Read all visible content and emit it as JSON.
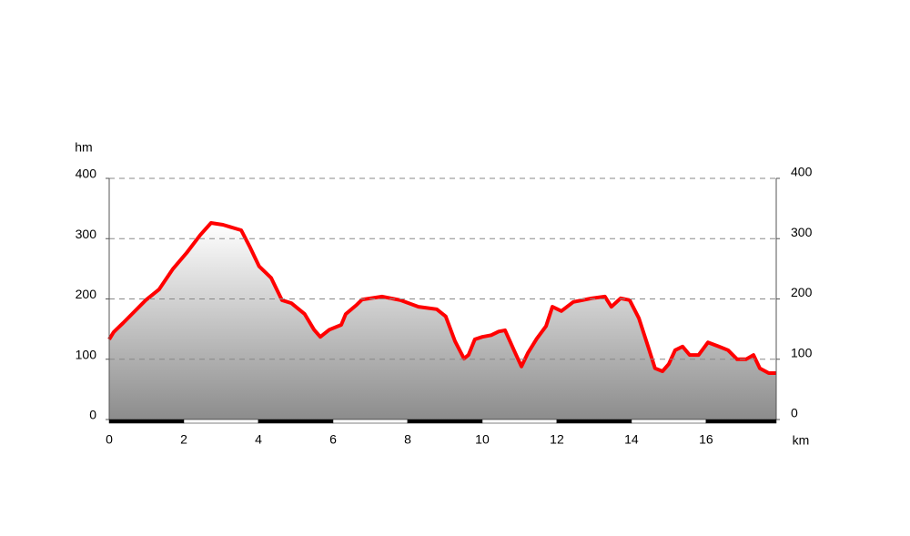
{
  "chart_data": {
    "type": "area",
    "y_unit": "hm",
    "x_unit": "km",
    "x": [
      0,
      0.12,
      0.37,
      0.61,
      0.98,
      1.34,
      1.71,
      2.07,
      2.44,
      2.73,
      3.05,
      3.54,
      3.78,
      4.02,
      4.34,
      4.63,
      4.88,
      5.24,
      5.49,
      5.66,
      5.9,
      6.22,
      6.34,
      6.63,
      6.78,
      7.32,
      7.8,
      8.29,
      8.78,
      9.02,
      9.27,
      9.51,
      9.63,
      9.8,
      10.0,
      10.24,
      10.44,
      10.61,
      10.85,
      11.05,
      11.22,
      11.46,
      11.71,
      11.88,
      12.12,
      12.44,
      12.93,
      13.29,
      13.46,
      13.71,
      13.95,
      14.2,
      14.44,
      14.63,
      14.83,
      15.0,
      15.17,
      15.37,
      15.56,
      15.8,
      16.05,
      16.34,
      16.59,
      16.83,
      17.07,
      17.27,
      17.44,
      17.68,
      17.88
    ],
    "series": [
      {
        "color": "#ff0000",
        "values": [
          133,
          145,
          160,
          175,
          198,
          216,
          250,
          276,
          306,
          326,
          323,
          314,
          285,
          254,
          235,
          198,
          193,
          175,
          149,
          137,
          149,
          157,
          175,
          190,
          199,
          204,
          198,
          187,
          183,
          171,
          130,
          101,
          107,
          133,
          137,
          140,
          146,
          148,
          115,
          88,
          110,
          134,
          155,
          187,
          180,
          195,
          201,
          204,
          187,
          201,
          198,
          168,
          122,
          85,
          80,
          92,
          115,
          121,
          107,
          107,
          128,
          121,
          115,
          100,
          100,
          107,
          85,
          77,
          77
        ]
      }
    ],
    "xlim": [
      0,
      17.88
    ],
    "ylim": [
      0,
      400
    ],
    "xticks": [
      0,
      2,
      4,
      6,
      8,
      10,
      12,
      14,
      16
    ],
    "yticks": [
      0,
      100,
      200,
      300,
      400
    ],
    "grid": true
  }
}
